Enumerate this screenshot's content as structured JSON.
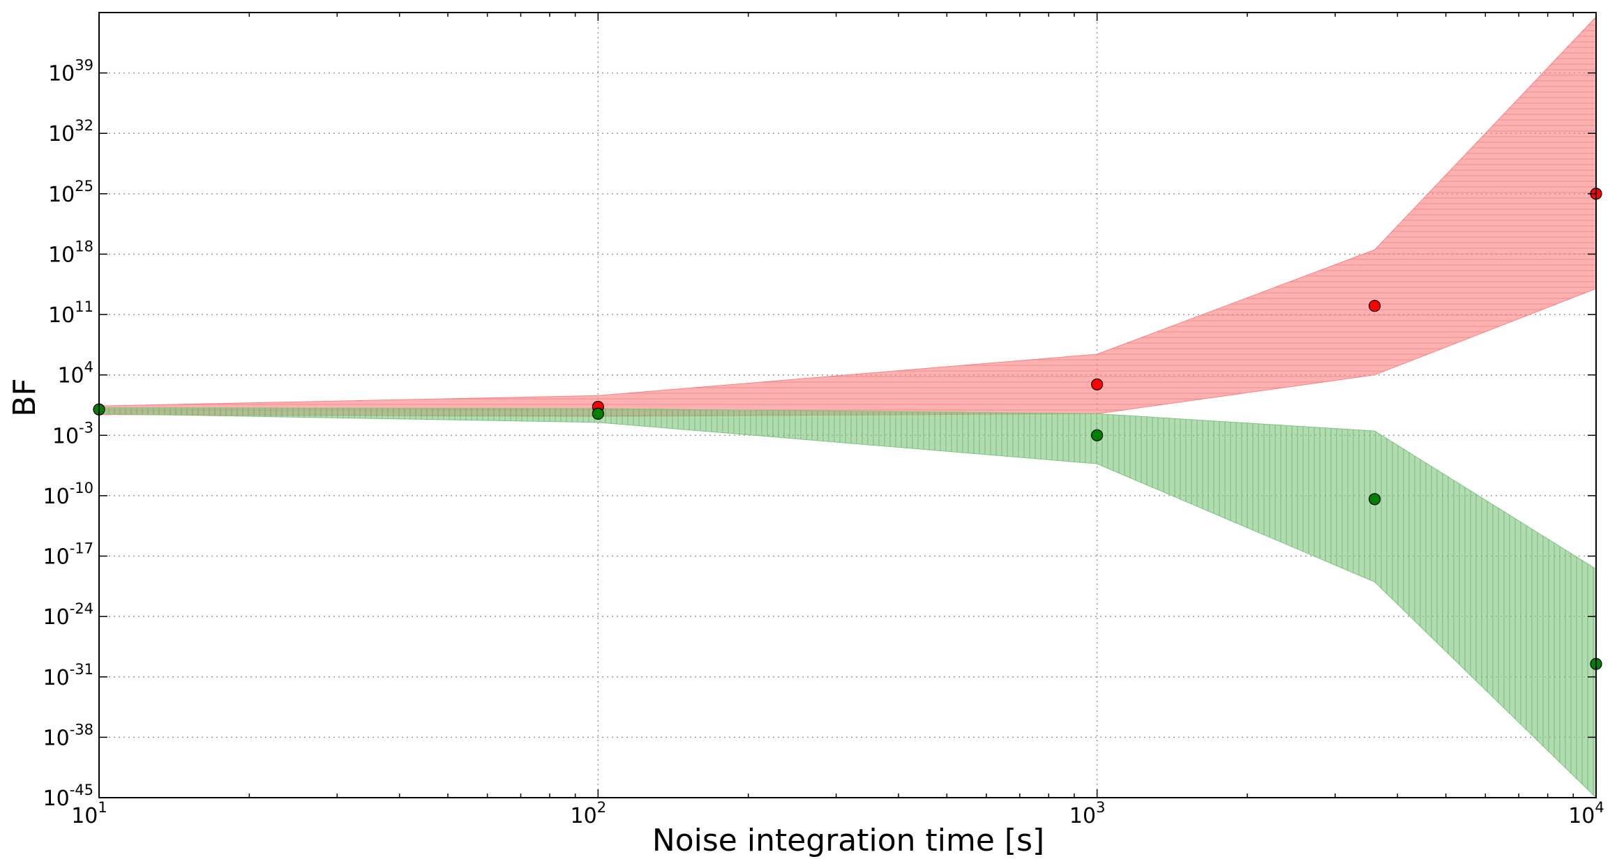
{
  "chart_data": {
    "type": "scatter",
    "title": "",
    "xlabel": "Noise integration time [s]",
    "ylabel": "BF",
    "x_scale": "log",
    "y_scale": "log",
    "xlim": [
      10,
      10000
    ],
    "ylim_log10": [
      -45,
      46
    ],
    "grid": true,
    "legend": "none",
    "x_ticks": [
      {
        "base": "10",
        "exp": "1",
        "value": 10
      },
      {
        "base": "10",
        "exp": "2",
        "value": 100
      },
      {
        "base": "10",
        "exp": "3",
        "value": 1000
      },
      {
        "base": "10",
        "exp": "4",
        "value": 10000
      }
    ],
    "y_ticks": [
      {
        "base": "10",
        "exp": "39",
        "log10": 39
      },
      {
        "base": "10",
        "exp": "32",
        "log10": 32
      },
      {
        "base": "10",
        "exp": "25",
        "log10": 25
      },
      {
        "base": "10",
        "exp": "18",
        "log10": 18
      },
      {
        "base": "10",
        "exp": "11",
        "log10": 11
      },
      {
        "base": "10",
        "exp": "4",
        "log10": 4
      },
      {
        "base": "10",
        "exp": "-3",
        "log10": -3
      },
      {
        "base": "10",
        "exp": "-10",
        "log10": -10
      },
      {
        "base": "10",
        "exp": "-17",
        "log10": -17
      },
      {
        "base": "10",
        "exp": "-24",
        "log10": -24
      },
      {
        "base": "10",
        "exp": "-31",
        "log10": -31
      },
      {
        "base": "10",
        "exp": "-38",
        "log10": -38
      },
      {
        "base": "10",
        "exp": "-45",
        "log10": -45
      }
    ],
    "series": [
      {
        "color": "#ff0000",
        "band_color": "#ff8080",
        "hatch": "horizontal",
        "x": [
          10,
          100,
          1000,
          3600,
          10000
        ],
        "log10_y": [
          0,
          0.3,
          2.9,
          12,
          25
        ],
        "log10_band_upper": [
          0.4,
          1.6,
          6.4,
          18.5,
          45.5
        ],
        "log10_band_lower": [
          -0.6,
          -0.8,
          -0.5,
          4,
          14
        ]
      },
      {
        "color": "#008000",
        "band_color": "#7fc77f",
        "hatch": "vertical",
        "x": [
          10,
          100,
          1000,
          3600,
          10000
        ],
        "log10_y": [
          0,
          -0.5,
          -3,
          -10.4,
          -29.5
        ],
        "log10_band_upper": [
          0.2,
          0.1,
          -0.5,
          -2.5,
          -18.5
        ],
        "log10_band_lower": [
          -0.5,
          -1.5,
          -6.3,
          -20,
          -45
        ]
      }
    ]
  }
}
